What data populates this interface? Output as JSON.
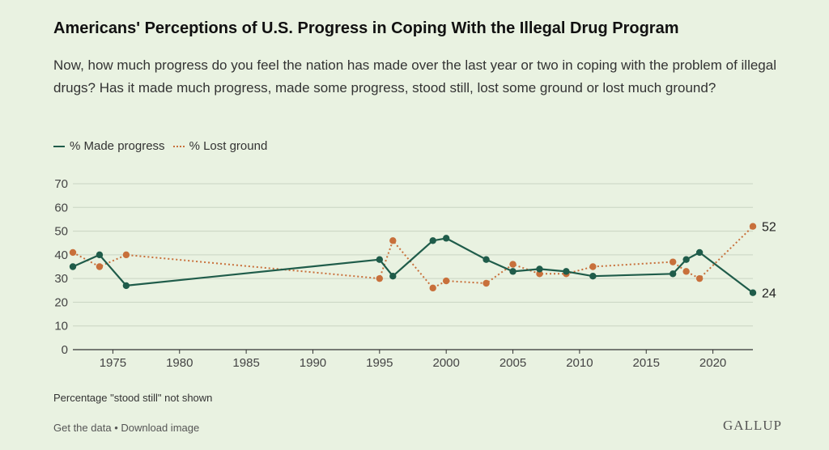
{
  "header": {
    "title": "Americans' Perceptions of U.S. Progress in Coping With the Illegal Drug Program",
    "subtitle": "Now, how much progress do you feel the nation has made over the last year or two in coping with the problem of illegal drugs? Has it made much progress, made some progress, stood still, lost some ground or lost much ground?"
  },
  "legend": {
    "made_label": "% Made progress",
    "lost_label": "% Lost ground"
  },
  "note": "Percentage \"stood still\" not shown",
  "footer": {
    "get_data": "Get the data",
    "separator": "•",
    "download": "Download image",
    "logo": "GALLUP"
  },
  "colors": {
    "made": "#1f5c4a",
    "lost": "#c8703b",
    "grid": "#c9d4c2",
    "axis": "#333333",
    "tick_text": "#444444"
  },
  "chart_data": {
    "type": "line",
    "xlim": [
      1972,
      2023
    ],
    "ylim": [
      0,
      70
    ],
    "yticks": [
      0,
      10,
      20,
      30,
      40,
      50,
      60,
      70
    ],
    "xticks": [
      1975,
      1980,
      1985,
      1990,
      1995,
      2000,
      2005,
      2010,
      2015,
      2020
    ],
    "grid": true,
    "legend_position": "top-left",
    "series": [
      {
        "name": "% Made progress",
        "style": "solid",
        "points": [
          [
            1972,
            35
          ],
          [
            1974,
            40
          ],
          [
            1976,
            27
          ],
          [
            1995,
            38
          ],
          [
            1996,
            31
          ],
          [
            1999,
            46
          ],
          [
            2000,
            47
          ],
          [
            2003,
            38
          ],
          [
            2005,
            33
          ],
          [
            2007,
            34
          ],
          [
            2009,
            33
          ],
          [
            2011,
            31
          ],
          [
            2017,
            32
          ],
          [
            2018,
            38
          ],
          [
            2019,
            41
          ],
          [
            2023,
            24
          ]
        ],
        "end_label": "24"
      },
      {
        "name": "% Lost ground",
        "style": "dotted",
        "points": [
          [
            1972,
            41
          ],
          [
            1974,
            35
          ],
          [
            1976,
            40
          ],
          [
            1995,
            30
          ],
          [
            1996,
            46
          ],
          [
            1999,
            26
          ],
          [
            2000,
            29
          ],
          [
            2003,
            28
          ],
          [
            2005,
            36
          ],
          [
            2007,
            32
          ],
          [
            2009,
            32
          ],
          [
            2011,
            35
          ],
          [
            2017,
            37
          ],
          [
            2018,
            33
          ],
          [
            2019,
            30
          ],
          [
            2023,
            52
          ]
        ],
        "end_label": "52"
      }
    ]
  }
}
